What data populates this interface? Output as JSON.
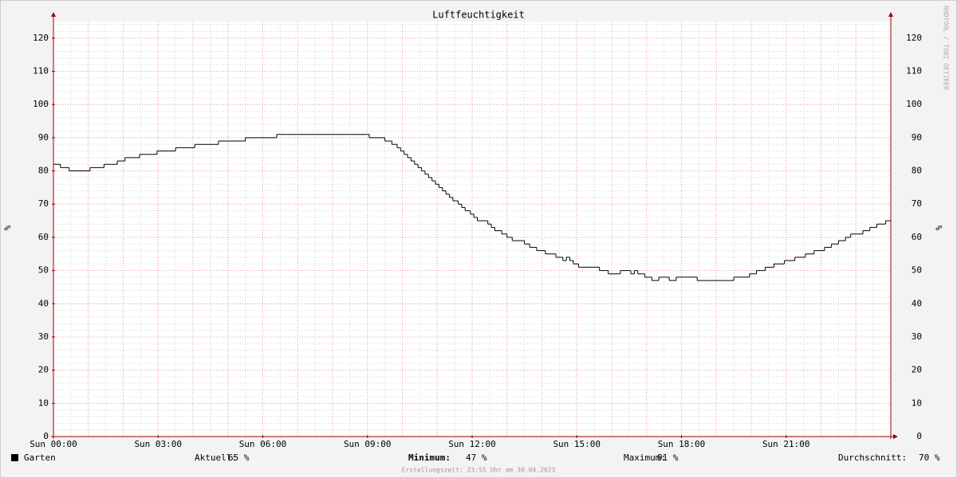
{
  "chart_data": {
    "type": "line",
    "title": "Luftfeuchtigkeit",
    "y_label": "%",
    "y2_label": "%",
    "watermark": "RRDTOOL / TOBI OETIKER",
    "x": [
      0,
      0.2,
      0.45,
      1.05,
      1.45,
      1.83,
      2.05,
      2.47,
      2.97,
      3.5,
      4.05,
      4.73,
      5.5,
      6.4,
      9.05,
      9.5,
      9.7,
      9.85,
      9.95,
      10.05,
      10.15,
      10.25,
      10.35,
      10.45,
      10.55,
      10.65,
      10.75,
      10.85,
      10.95,
      11.05,
      11.15,
      11.25,
      11.35,
      11.45,
      11.6,
      11.7,
      11.8,
      11.95,
      12.05,
      12.15,
      12.45,
      12.55,
      12.65,
      12.85,
      13.0,
      13.15,
      13.5,
      13.65,
      13.85,
      14.1,
      14.4,
      14.6,
      14.7,
      14.8,
      14.9,
      15.05,
      15.65,
      15.9,
      16.25,
      16.55,
      16.65,
      16.75,
      16.95,
      17.15,
      17.35,
      17.65,
      17.85,
      18.45,
      19.5,
      19.95,
      20.15,
      20.4,
      20.65,
      20.95,
      21.25,
      21.55,
      21.8,
      22.1,
      22.3,
      22.5,
      22.7,
      22.85,
      23.2,
      23.4,
      23.6,
      23.85
    ],
    "series": [
      {
        "name": "Garten",
        "color": "#000000",
        "values": [
          82,
          81,
          80,
          81,
          82,
          83,
          84,
          85,
          86,
          87,
          88,
          89,
          90,
          91,
          90,
          89,
          88,
          87,
          86,
          85,
          84,
          83,
          82,
          81,
          80,
          79,
          78,
          77,
          76,
          75,
          74,
          73,
          72,
          71,
          70,
          69,
          68,
          67,
          66,
          65,
          64,
          63,
          62,
          61,
          60,
          59,
          58,
          57,
          56,
          55,
          54,
          53,
          54,
          53,
          52,
          51,
          50,
          49,
          50,
          49,
          50,
          49,
          48,
          47,
          48,
          47,
          48,
          47,
          48,
          49,
          50,
          51,
          52,
          53,
          54,
          55,
          56,
          57,
          58,
          59,
          60,
          61,
          62,
          63,
          64,
          65
        ]
      }
    ],
    "xlim": [
      0,
      24
    ],
    "xticks": [
      {
        "value": 0,
        "label": "Sun 00:00"
      },
      {
        "value": 3,
        "label": "Sun 03:00"
      },
      {
        "value": 6,
        "label": "Sun 06:00"
      },
      {
        "value": 9,
        "label": "Sun 09:00"
      },
      {
        "value": 12,
        "label": "Sun 12:00"
      },
      {
        "value": 15,
        "label": "Sun 15:00"
      },
      {
        "value": 18,
        "label": "Sun 18:00"
      },
      {
        "value": 21,
        "label": "Sun 21:00"
      }
    ],
    "ylim": [
      0,
      125
    ],
    "yticks": [
      0,
      10,
      20,
      30,
      40,
      50,
      60,
      70,
      80,
      90,
      100,
      110,
      120
    ],
    "grid": true,
    "major_grid_color": "#f0a0a0",
    "minor_grid_color": "#d8d8d8",
    "major_grid_step": {
      "x": 1,
      "y": 10
    },
    "minor_grid_step": {
      "x": 0.5,
      "y": 2
    },
    "stats": [
      {
        "label": "Aktuell:",
        "value": "65 %"
      },
      {
        "label": "Minimum:",
        "value": "47 %"
      },
      {
        "label": "Maximum:",
        "value": "91 %"
      },
      {
        "label": "Durchschnitt:",
        "value": "70 %"
      }
    ],
    "footer": "Erstellungszeit: 23:55 Uhr am 30.04.2023"
  }
}
